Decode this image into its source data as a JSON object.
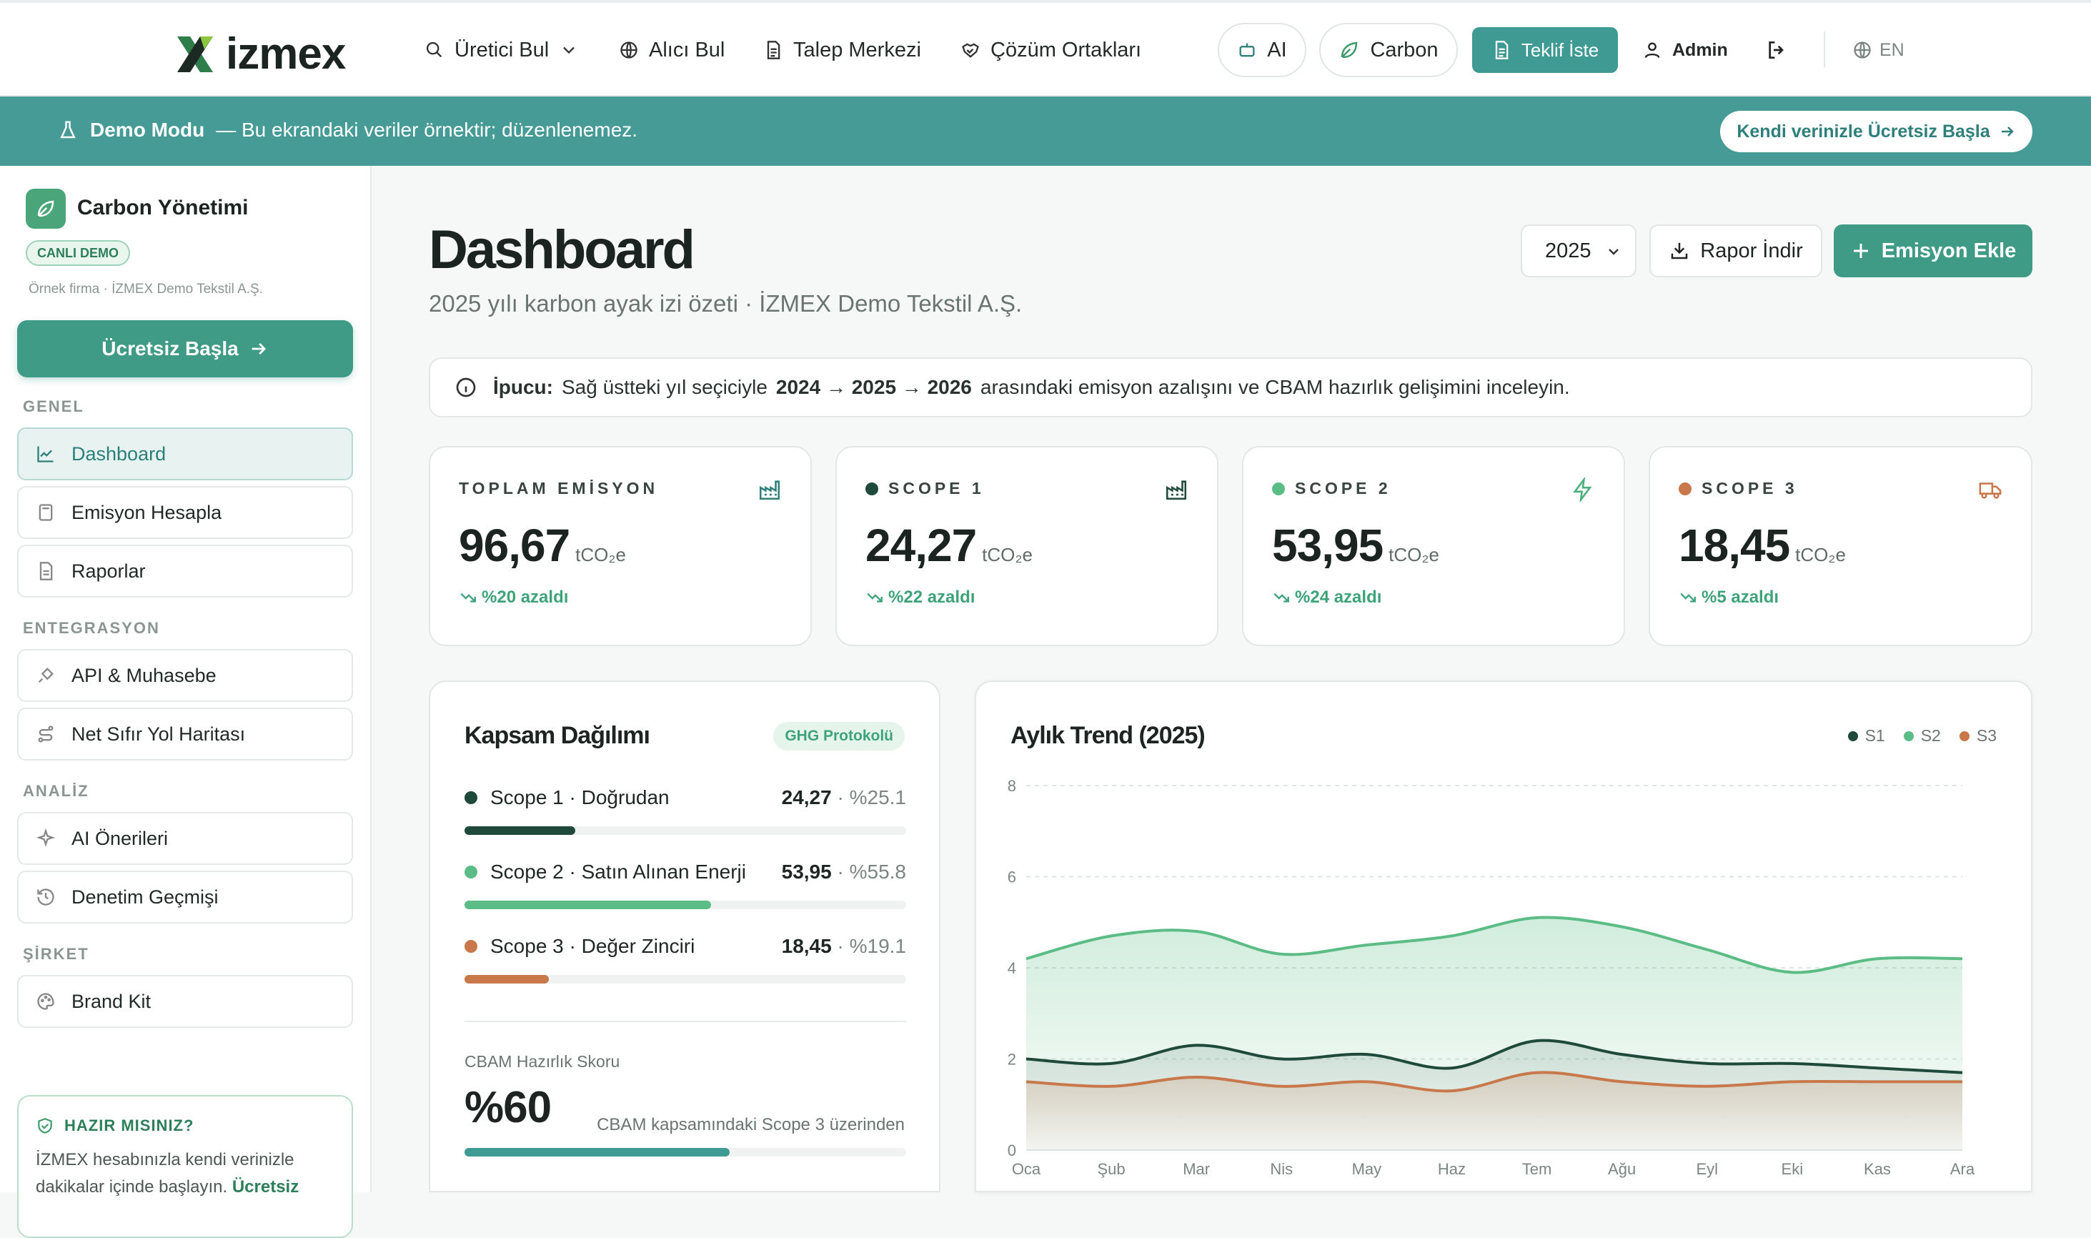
{
  "nav": {
    "brand": "izmex",
    "items": [
      "Üretici Bul",
      "Alıcı Bul",
      "Talep Merkezi",
      "Çözüm Ortakları"
    ],
    "ai_label": "AI",
    "carbon_label": "Carbon",
    "quote_label": "Teklif İste",
    "user_label": "Admin",
    "lang_label": "EN"
  },
  "banner": {
    "title": "Demo Modu",
    "message": "— Bu ekrandaki veriler örnektir; düzenlenemez.",
    "cta": "Kendi verinizle Ücretsiz Başla"
  },
  "sidebar": {
    "title": "Carbon Yönetimi",
    "badge": "CANLI DEMO",
    "company_note": "Örnek firma · İZMEX Demo Tekstil A.Ş.",
    "start_button": "Ücretsiz Başla",
    "sections": {
      "genel": "GENEL",
      "entegrasyon": "ENTEGRASYON",
      "analiz": "ANALİZ",
      "sirket": "ŞİRKET"
    },
    "items": {
      "dashboard": "Dashboard",
      "emisyon": "Emisyon Hesapla",
      "raporlar": "Raporlar",
      "api": "API & Muhasebe",
      "netsifir": "Net Sıfır Yol Haritası",
      "ai": "AI Önerileri",
      "denetim": "Denetim Geçmişi",
      "brand": "Brand Kit"
    },
    "promo": {
      "title": "HAZIR MISINIZ?",
      "text": "İZMEX hesabınızla kendi verinizle dakikalar içinde başlayın.",
      "link": "Ücretsiz"
    }
  },
  "header": {
    "title": "Dashboard",
    "subtitle": "2025 yılı karbon ayak izi özeti · İZMEX Demo Tekstil A.Ş.",
    "year": "2025",
    "report_button": "Rapor İndir",
    "add_button": "Emisyon Ekle"
  },
  "tip": {
    "label": "İpucu:",
    "text_a": "Sağ üstteki yıl seçiciyle",
    "years": "2024 → 2025 → 2026",
    "text_b": "arasındaki emisyon azalışını ve CBAM hazırlık gelişimini inceleyin."
  },
  "kpis": [
    {
      "label": "TOPLAM EMİSYON",
      "value": "96,67",
      "unit": "tCO₂e",
      "delta": "%20 azaldı",
      "color": ""
    },
    {
      "label": "SCOPE 1",
      "value": "24,27",
      "unit": "tCO₂e",
      "delta": "%22 azaldı",
      "color": "#1f4a3b"
    },
    {
      "label": "SCOPE 2",
      "value": "53,95",
      "unit": "tCO₂e",
      "delta": "%24 azaldı",
      "color": "#5bbd85"
    },
    {
      "label": "SCOPE 3",
      "value": "18,45",
      "unit": "tCO₂e",
      "delta": "%5 azaldı",
      "color": "#c8784a"
    }
  ],
  "scope_card": {
    "title": "Kapsam Dağılımı",
    "badge": "GHG Protokolü",
    "rows": [
      {
        "name": "Scope 1 · Doğrudan",
        "value": "24,27",
        "pct": "%25.1",
        "share": 0.251,
        "color": "#1f4a3b"
      },
      {
        "name": "Scope 2 · Satın Alınan Enerji",
        "value": "53,95",
        "pct": "%55.8",
        "share": 0.558,
        "color": "#5bbd85"
      },
      {
        "name": "Scope 3 · Değer Zinciri",
        "value": "18,45",
        "pct": "%19.1",
        "share": 0.191,
        "color": "#c8784a"
      }
    ],
    "cbam_label": "CBAM Hazırlık Skoru",
    "cbam_value": "%60",
    "cbam_share": 0.6,
    "cbam_note": "CBAM kapsamındaki Scope 3 üzerinden"
  },
  "chart_data": {
    "type": "area",
    "title": "Aylık Trend (2025)",
    "categories": [
      "Oca",
      "Şub",
      "Mar",
      "Nis",
      "May",
      "Haz",
      "Tem",
      "Ağu",
      "Eyl",
      "Eki",
      "Kas",
      "Ara"
    ],
    "ylim": [
      0,
      8
    ],
    "yticks": [
      0,
      2,
      4,
      6,
      8
    ],
    "grid": true,
    "legend": "top-right",
    "series": [
      {
        "name": "S1",
        "color": "#1f4a3b",
        "values": [
          2.0,
          1.9,
          2.3,
          2.0,
          2.1,
          1.8,
          2.4,
          2.1,
          1.9,
          1.9,
          1.8,
          1.7
        ]
      },
      {
        "name": "S2",
        "color": "#5bbd85",
        "values": [
          4.2,
          4.7,
          4.8,
          4.3,
          4.5,
          4.7,
          5.1,
          4.9,
          4.4,
          3.9,
          4.2,
          4.2
        ]
      },
      {
        "name": "S3",
        "color": "#c8784a",
        "values": [
          1.5,
          1.4,
          1.6,
          1.4,
          1.5,
          1.3,
          1.7,
          1.5,
          1.4,
          1.5,
          1.5,
          1.5
        ]
      }
    ]
  }
}
